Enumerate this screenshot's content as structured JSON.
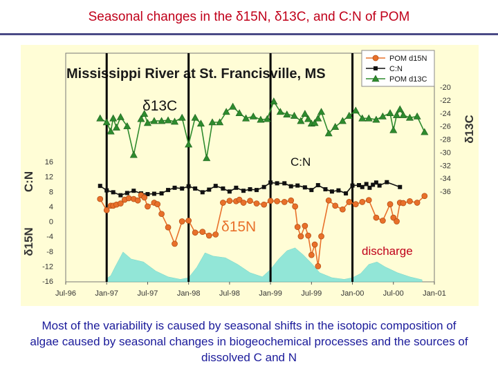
{
  "slide": {
    "title": "Seasonal changes in the δ15N, δ13C, and C:N of POM",
    "caption": "Most of the variability is caused by seasonal shifts in the isotopic composition of algae caused by seasonal changes in biogeochemical processes and the sources of dissolved C and N"
  },
  "chart_data": {
    "type": "line",
    "title": "Mississippi River at St. Francisville, MS",
    "x_tick_labels": [
      "Jul-96",
      "Jan-97",
      "Jul-97",
      "Jan-98",
      "Jul-98",
      "Jan-99",
      "Jul-99",
      "Jan-00",
      "Jul-00",
      "Jan-01"
    ],
    "left_axis_labels": [
      "C:N",
      "δ15N"
    ],
    "left_axis_ticks": [
      16,
      12,
      8,
      4,
      0,
      -4,
      -8,
      -12,
      -16
    ],
    "right_axis_label": "δ13C",
    "right_axis_ticks": [
      -20,
      -22,
      -24,
      -26,
      -28,
      -30,
      -32,
      -34,
      -36
    ],
    "annotations": [
      "δ13C",
      "C:N",
      "δ15N",
      "discharge"
    ],
    "legend": {
      "position": "top-right",
      "entries": [
        "POM d15N",
        "C:N",
        "POM d13C"
      ]
    },
    "colors": {
      "d15N": "#e8702a",
      "cn": "#111111",
      "d13C": "#2e8b2e",
      "discharge": "#7fe3d8",
      "annotation": "#c0001a",
      "frame": "#fffdd6"
    },
    "vertical_markers": [
      "Jan-97",
      "Jan-98",
      "Jan-99",
      "Jan-00"
    ],
    "series": [
      {
        "name": "POM d13C",
        "axis": "right",
        "x": [
          1996.92,
          1997.0,
          1997.05,
          1997.08,
          1997.12,
          1997.17,
          1997.25,
          1997.33,
          1997.42,
          1997.46,
          1997.5,
          1997.58,
          1997.67,
          1997.75,
          1997.83,
          1997.92,
          1998.0,
          1998.08,
          1998.15,
          1998.22,
          1998.29,
          1998.38,
          1998.46,
          1998.54,
          1998.62,
          1998.7,
          1998.79,
          1998.88,
          1998.96,
          1999.04,
          1999.12,
          1999.2,
          1999.29,
          1999.37,
          1999.42,
          1999.46,
          1999.5,
          1999.54,
          1999.58,
          1999.62,
          1999.71,
          1999.79,
          1999.88,
          1999.96,
          2000.04,
          2000.12,
          2000.2,
          2000.29,
          2000.37,
          2000.46,
          2000.5,
          2000.54,
          2000.58,
          2000.62,
          2000.7,
          2000.79,
          2000.88
        ],
        "y": [
          -24.8,
          -25.4,
          -26.8,
          -24.8,
          -26.2,
          -24.6,
          -26.0,
          -30.4,
          -24.9,
          -24.1,
          -25.5,
          -25.2,
          -25.2,
          -25.1,
          -25.3,
          -24.7,
          -28.8,
          -24.7,
          -25.6,
          -30.9,
          -25.4,
          -25.4,
          -23.8,
          -23.0,
          -24.0,
          -24.8,
          -24.5,
          -25.0,
          -24.9,
          -22.2,
          -23.8,
          -24.2,
          -24.4,
          -25.2,
          -24.1,
          -24.9,
          -25.6,
          -25.5,
          -24.8,
          -23.8,
          -27.1,
          -26.1,
          -25.2,
          -24.4,
          -23.6,
          -24.8,
          -24.8,
          -25.0,
          -24.5,
          -24.0,
          -26.6,
          -24.3,
          -23.4,
          -24.3,
          -24.7,
          -24.5,
          -26.9
        ]
      },
      {
        "name": "C:N",
        "axis": "left",
        "x": [
          1996.92,
          1997.0,
          1997.08,
          1997.17,
          1997.25,
          1997.33,
          1997.42,
          1997.5,
          1997.58,
          1997.67,
          1997.75,
          1997.83,
          1997.92,
          1998.0,
          1998.08,
          1998.17,
          1998.25,
          1998.33,
          1998.42,
          1998.5,
          1998.58,
          1998.67,
          1998.75,
          1998.83,
          1998.92,
          1999.0,
          1999.08,
          1999.17,
          1999.25,
          1999.33,
          1999.42,
          1999.5,
          1999.58,
          1999.67,
          1999.75,
          1999.83,
          1999.92,
          2000.0,
          2000.08,
          2000.12,
          2000.17,
          2000.21,
          2000.25,
          2000.29,
          2000.33,
          2000.42,
          2000.58
        ],
        "y": [
          9.5,
          8.3,
          7.8,
          7.0,
          7.6,
          8.2,
          7.5,
          7.3,
          7.4,
          7.5,
          8.4,
          9.0,
          8.8,
          9.4,
          8.8,
          7.8,
          8.5,
          9.5,
          8.8,
          8.0,
          9.0,
          8.2,
          8.6,
          8.4,
          9.2,
          10.4,
          10.2,
          10.2,
          9.4,
          9.6,
          9.1,
          8.4,
          9.7,
          8.6,
          8.0,
          8.3,
          7.5,
          9.6,
          9.7,
          9.2,
          10.0,
          9.0,
          9.8,
          10.4,
          9.6,
          10.5,
          9.2
        ]
      },
      {
        "name": "POM d15N",
        "axis": "left",
        "x": [
          1996.92,
          1997.0,
          1997.05,
          1997.08,
          1997.12,
          1997.17,
          1997.22,
          1997.27,
          1997.33,
          1997.38,
          1997.42,
          1997.46,
          1997.5,
          1997.58,
          1997.62,
          1997.67,
          1997.75,
          1997.83,
          1997.92,
          1998.0,
          1998.08,
          1998.17,
          1998.25,
          1998.33,
          1998.42,
          1998.5,
          1998.58,
          1998.62,
          1998.67,
          1998.75,
          1998.83,
          1998.92,
          1999.0,
          1999.08,
          1999.17,
          1999.25,
          1999.3,
          1999.33,
          1999.37,
          1999.42,
          1999.46,
          1999.5,
          1999.54,
          1999.58,
          1999.62,
          1999.71,
          1999.79,
          1999.88,
          1999.96,
          2000.04,
          2000.12,
          2000.2,
          2000.29,
          2000.37,
          2000.46,
          2000.5,
          2000.54,
          2000.58,
          2000.62,
          2000.7,
          2000.79,
          2000.88
        ],
        "y": [
          6.0,
          3.0,
          4.2,
          4.2,
          4.5,
          4.8,
          5.8,
          6.2,
          6.0,
          5.6,
          7.0,
          6.4,
          4.0,
          5.0,
          4.6,
          2.0,
          -1.6,
          -6.0,
          0.0,
          0.2,
          -3.0,
          -2.8,
          -3.8,
          -3.5,
          5.0,
          5.5,
          5.4,
          5.8,
          5.0,
          5.5,
          4.8,
          4.5,
          5.5,
          5.4,
          5.2,
          5.6,
          4.0,
          -1.5,
          -4.0,
          -1.2,
          -3.8,
          -9.0,
          -6.2,
          -12.0,
          -4.0,
          5.6,
          4.2,
          3.2,
          5.2,
          4.6,
          5.2,
          5.7,
          1.0,
          0.2,
          4.6,
          1.0,
          0.0,
          5.0,
          4.9,
          5.4,
          5.0,
          6.8
        ]
      }
    ],
    "discharge": {
      "name": "discharge",
      "unit_note": "",
      "x": [
        1997.0,
        1997.05,
        1997.1,
        1997.2,
        1997.3,
        1997.45,
        1997.6,
        1997.75,
        1997.9,
        1998.0,
        1998.1,
        1998.2,
        1998.3,
        1998.45,
        1998.6,
        1998.75,
        1998.9,
        1999.0,
        1999.1,
        1999.2,
        1999.3,
        1999.4,
        1999.5,
        1999.6,
        1999.75,
        1999.9,
        2000.0,
        2000.1,
        2000.2,
        2000.3,
        2000.4,
        2000.55,
        2000.7,
        2000.85
      ],
      "level": [
        0.08,
        0.15,
        0.35,
        0.72,
        0.55,
        0.48,
        0.26,
        0.12,
        0.06,
        0.1,
        0.35,
        0.7,
        0.62,
        0.58,
        0.42,
        0.22,
        0.12,
        0.3,
        0.55,
        0.75,
        0.82,
        0.65,
        0.45,
        0.22,
        0.1,
        0.06,
        0.1,
        0.2,
        0.42,
        0.48,
        0.36,
        0.22,
        0.12,
        0.05
      ]
    }
  }
}
